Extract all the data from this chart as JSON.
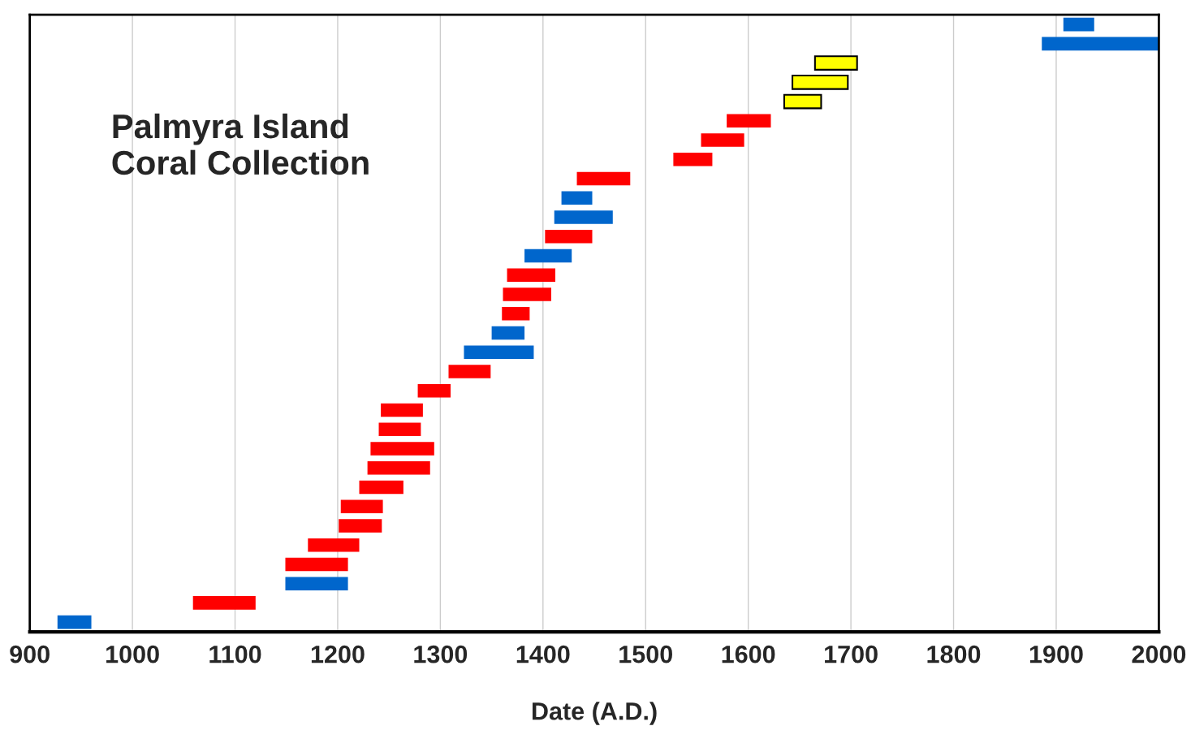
{
  "chart_data": {
    "type": "bar",
    "orientation": "horizontal",
    "title": "Palmyra Island\nCoral Collection",
    "xlabel": "Date (A.D.)",
    "categories": [
      null,
      null,
      null,
      null,
      null,
      null,
      null,
      null,
      null,
      null,
      null,
      null,
      null,
      null,
      null,
      null,
      null,
      null,
      null,
      null,
      null,
      null,
      null,
      null,
      null,
      null,
      null,
      null,
      null,
      null,
      null,
      null
    ],
    "base": [
      1907,
      1886,
      1665,
      1643,
      1635,
      1579,
      1554,
      1527,
      1433,
      1418,
      1411,
      1402,
      1382,
      1365,
      1361,
      1360,
      1350,
      1323,
      1308,
      1278,
      1242,
      1240,
      1232,
      1229,
      1221,
      1203,
      1201,
      1171,
      1149,
      1149,
      1059,
      927
    ],
    "values": [
      30,
      113,
      41,
      54,
      36,
      43,
      42,
      38,
      52,
      30,
      57,
      46,
      46,
      47,
      47,
      27,
      32,
      68,
      41,
      32,
      41,
      41,
      62,
      61,
      43,
      41,
      42,
      50,
      61,
      61,
      61,
      33
    ],
    "colors": [
      "#0066cc",
      "#0066cc",
      "#ffff00",
      "#ffff00",
      "#ffff00",
      "#ff0000",
      "#ff0000",
      "#ff0000",
      "#ff0000",
      "#0066cc",
      "#0066cc",
      "#ff0000",
      "#0066cc",
      "#ff0000",
      "#ff0000",
      "#ff0000",
      "#0066cc",
      "#0066cc",
      "#ff0000",
      "#ff0000",
      "#ff0000",
      "#ff0000",
      "#ff0000",
      "#ff0000",
      "#ff0000",
      "#ff0000",
      "#ff0000",
      "#ff0000",
      "#ff0000",
      "#0066cc",
      "#ff0000",
      "#0066cc"
    ],
    "xlim": [
      900,
      2000
    ],
    "xticks": [
      900,
      1000,
      1100,
      1200,
      1300,
      1400,
      1500,
      1600,
      1700,
      1800,
      1900,
      2000
    ],
    "grid": "x",
    "tick_labels": "x"
  }
}
